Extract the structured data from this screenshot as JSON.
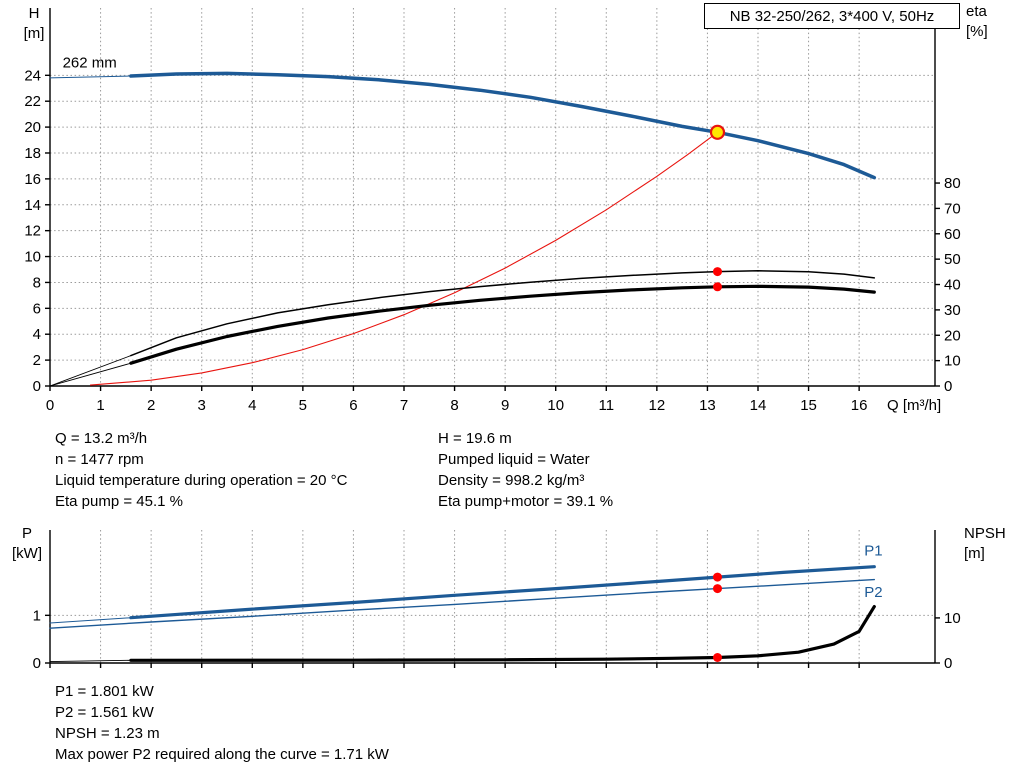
{
  "header": {
    "title": "NB 32-250/262, 3*400 V, 50Hz"
  },
  "info_top": {
    "left": [
      "Q = 13.2 m³/h",
      "n = 1477 rpm",
      "Liquid temperature during operation = 20 °C",
      "Eta pump = 45.1 %"
    ],
    "right": [
      "H = 19.6 m",
      "Pumped liquid = Water",
      "Density = 998.2 kg/m³",
      "Eta pump+motor = 39.1 %"
    ]
  },
  "info_bottom": [
    "P1 = 1.801 kW",
    "P2 = 1.561 kW",
    "NPSH = 1.23 m",
    "Max power P2 required along the curve = 1.71 kW"
  ],
  "chart_data": [
    {
      "type": "line",
      "name": "hq-eta-chart",
      "title": "NB 32-250/262, 3*400 V, 50Hz",
      "x": {
        "label": "Q [m³/h]",
        "min": 0,
        "max": 17.5,
        "show_tick_labels": true,
        "ticks": [
          0,
          1,
          2,
          3,
          4,
          5,
          6,
          7,
          8,
          9,
          10,
          11,
          12,
          13,
          14,
          15,
          16
        ]
      },
      "y_left": {
        "label_lines": [
          "H",
          "[m]"
        ],
        "min": 0,
        "max": 29.2,
        "ticks": [
          0,
          2,
          4,
          6,
          8,
          10,
          12,
          14,
          16,
          18,
          20,
          22,
          24
        ]
      },
      "y_right": {
        "label_lines": [
          "eta",
          "[%]"
        ],
        "min": 0,
        "max": 149,
        "ticks": [
          0,
          10,
          20,
          30,
          40,
          50,
          60,
          70,
          80
        ]
      },
      "series": [
        {
          "name": "head-curve-262mm",
          "axis": "left",
          "color": "#1d5a96",
          "width": 3.5,
          "points": [
            [
              1.6,
              23.95
            ],
            [
              2.5,
              24.1
            ],
            [
              3.5,
              24.15
            ],
            [
              4.5,
              24.05
            ],
            [
              5.5,
              23.9
            ],
            [
              6.5,
              23.65
            ],
            [
              7.5,
              23.3
            ],
            [
              8.5,
              22.85
            ],
            [
              9.5,
              22.3
            ],
            [
              10.5,
              21.6
            ],
            [
              11.5,
              20.85
            ],
            [
              12.5,
              20.05
            ],
            [
              13.2,
              19.6
            ],
            [
              14,
              18.95
            ],
            [
              15,
              17.95
            ],
            [
              15.7,
              17.1
            ],
            [
              16.3,
              16.1
            ]
          ]
        },
        {
          "name": "head-curve-lead-in",
          "axis": "left",
          "color": "#1d5a96",
          "width": 1,
          "points": [
            [
              0,
              23.8
            ],
            [
              1.6,
              23.95
            ]
          ]
        },
        {
          "name": "system-curve",
          "axis": "left",
          "color": "#e8140f",
          "width": 1.1,
          "points": [
            [
              0.8,
              0.07
            ],
            [
              2,
              0.45
            ],
            [
              3,
              1.01
            ],
            [
              4,
              1.8
            ],
            [
              5,
              2.81
            ],
            [
              6,
              4.05
            ],
            [
              7,
              5.51
            ],
            [
              8,
              7.2
            ],
            [
              9,
              9.11
            ],
            [
              10,
              11.25
            ],
            [
              11,
              13.61
            ],
            [
              12,
              16.2
            ],
            [
              12.6,
              17.85
            ],
            [
              13.2,
              19.6
            ]
          ]
        },
        {
          "name": "eta-pump-curve",
          "axis": "right",
          "color": "#000000",
          "width": 1.5,
          "points": [
            [
              1.6,
              12
            ],
            [
              2.5,
              19
            ],
            [
              3.5,
              24.5
            ],
            [
              4.5,
              28.8
            ],
            [
              5.5,
              32
            ],
            [
              6.5,
              34.8
            ],
            [
              7.5,
              37.2
            ],
            [
              8.5,
              39.2
            ],
            [
              9.5,
              40.9
            ],
            [
              10.5,
              42.4
            ],
            [
              11.5,
              43.6
            ],
            [
              12.5,
              44.6
            ],
            [
              13.2,
              45.1
            ],
            [
              14,
              45.4
            ],
            [
              15,
              45
            ],
            [
              15.7,
              44.1
            ],
            [
              16.3,
              42.6
            ]
          ]
        },
        {
          "name": "eta-pump-lead-in",
          "axis": "right",
          "color": "#000000",
          "width": 0.9,
          "points": [
            [
              0,
              0
            ],
            [
              1.6,
              12
            ]
          ]
        },
        {
          "name": "eta-pump-motor-curve",
          "axis": "right",
          "color": "#000000",
          "width": 3.2,
          "points": [
            [
              1.6,
              9
            ],
            [
              2.5,
              14.5
            ],
            [
              3.5,
              19.5
            ],
            [
              4.5,
              23.5
            ],
            [
              5.5,
              26.8
            ],
            [
              6.5,
              29.5
            ],
            [
              7.5,
              31.8
            ],
            [
              8.5,
              33.8
            ],
            [
              9.5,
              35.4
            ],
            [
              10.5,
              36.8
            ],
            [
              11.5,
              37.9
            ],
            [
              12.5,
              38.7
            ],
            [
              13.2,
              39.1
            ],
            [
              14,
              39.3
            ],
            [
              15,
              39
            ],
            [
              15.7,
              38.2
            ],
            [
              16.3,
              37
            ]
          ]
        },
        {
          "name": "eta-pump-motor-lead-in",
          "axis": "right",
          "color": "#000000",
          "width": 0.9,
          "points": [
            [
              0,
              0
            ],
            [
              1.6,
              9
            ]
          ]
        }
      ],
      "markers": [
        {
          "name": "duty-point",
          "x": 13.2,
          "y": 19.6,
          "axis": "left",
          "r": 6.5,
          "fill": "#ffe600",
          "stroke": "#e8140f",
          "stroke_width": 2.2,
          "interactable": true
        },
        {
          "name": "eta-pump-duty-point",
          "x": 13.2,
          "y": 45.1,
          "axis": "right",
          "r": 4.5,
          "fill": "#ff0000"
        },
        {
          "name": "eta-pump-motor-duty-point",
          "x": 13.2,
          "y": 39.1,
          "axis": "right",
          "r": 4.5,
          "fill": "#ff0000"
        }
      ],
      "annotations": [
        {
          "name": "impeller-diameter-label",
          "text": "262 mm",
          "x": 0.25,
          "y": 24.6,
          "axis": "left",
          "color": "#000000"
        }
      ]
    },
    {
      "type": "line",
      "name": "power-npsh-chart",
      "x": {
        "label": "",
        "min": 0,
        "max": 17.5,
        "show_tick_labels": false,
        "ticks": [
          0,
          1,
          2,
          3,
          4,
          5,
          6,
          7,
          8,
          9,
          10,
          11,
          12,
          13,
          14,
          15,
          16
        ]
      },
      "y_left": {
        "label_lines": [
          "P",
          "[kW]"
        ],
        "min": 0,
        "max": 2.79,
        "ticks": [
          0,
          1
        ]
      },
      "y_right": {
        "label_lines": [
          "NPSH",
          "[m]"
        ],
        "min": 0,
        "max": 29.5,
        "ticks": [
          0,
          10
        ]
      },
      "series": [
        {
          "name": "p1-curve",
          "axis": "left",
          "color": "#1d5a96",
          "width": 3.2,
          "points": [
            [
              1.6,
              0.95
            ],
            [
              4,
              1.13
            ],
            [
              6,
              1.27
            ],
            [
              8,
              1.42
            ],
            [
              10,
              1.56
            ],
            [
              12,
              1.71
            ],
            [
              13.2,
              1.801
            ],
            [
              14.5,
              1.9
            ],
            [
              16.3,
              2.02
            ]
          ]
        },
        {
          "name": "p1-lead-in",
          "axis": "left",
          "color": "#1d5a96",
          "width": 1,
          "points": [
            [
              0,
              0.84
            ],
            [
              1.6,
              0.95
            ]
          ]
        },
        {
          "name": "p2-curve",
          "axis": "left",
          "color": "#1d5a96",
          "width": 1.4,
          "points": [
            [
              0,
              0.73
            ],
            [
              2,
              0.86
            ],
            [
              4,
              0.98
            ],
            [
              6,
              1.11
            ],
            [
              8,
              1.23
            ],
            [
              10,
              1.36
            ],
            [
              12,
              1.49
            ],
            [
              13.2,
              1.561
            ],
            [
              14.5,
              1.64
            ],
            [
              16.3,
              1.75
            ]
          ]
        },
        {
          "name": "npsh-curve",
          "axis": "right",
          "color": "#000000",
          "width": 3.2,
          "points": [
            [
              1.6,
              0.6
            ],
            [
              6,
              0.62
            ],
            [
              9,
              0.7
            ],
            [
              11,
              0.85
            ],
            [
              12.3,
              1.05
            ],
            [
              13.2,
              1.23
            ],
            [
              14,
              1.6
            ],
            [
              14.8,
              2.4
            ],
            [
              15.5,
              4.2
            ],
            [
              16,
              7
            ],
            [
              16.3,
              12.5
            ]
          ]
        },
        {
          "name": "npsh-lead-in",
          "axis": "right",
          "color": "#000000",
          "width": 0.9,
          "points": [
            [
              0,
              0.3
            ],
            [
              1.6,
              0.6
            ]
          ]
        }
      ],
      "markers": [
        {
          "name": "p1-duty-point",
          "x": 13.2,
          "y": 1.801,
          "axis": "left",
          "r": 4.5,
          "fill": "#ff0000"
        },
        {
          "name": "p2-duty-point",
          "x": 13.2,
          "y": 1.561,
          "axis": "left",
          "r": 4.5,
          "fill": "#ff0000"
        },
        {
          "name": "npsh-duty-point",
          "x": 13.2,
          "y": 1.23,
          "axis": "right",
          "r": 4.5,
          "fill": "#ff0000"
        }
      ],
      "annotations": [
        {
          "name": "p1-curve-label",
          "text": "P1",
          "x": 16.1,
          "y": 2.25,
          "axis": "left",
          "color": "#1d5a96"
        },
        {
          "name": "p2-curve-label",
          "text": "P2",
          "x": 16.1,
          "y": 1.38,
          "axis": "left",
          "color": "#1d5a96"
        }
      ]
    }
  ]
}
